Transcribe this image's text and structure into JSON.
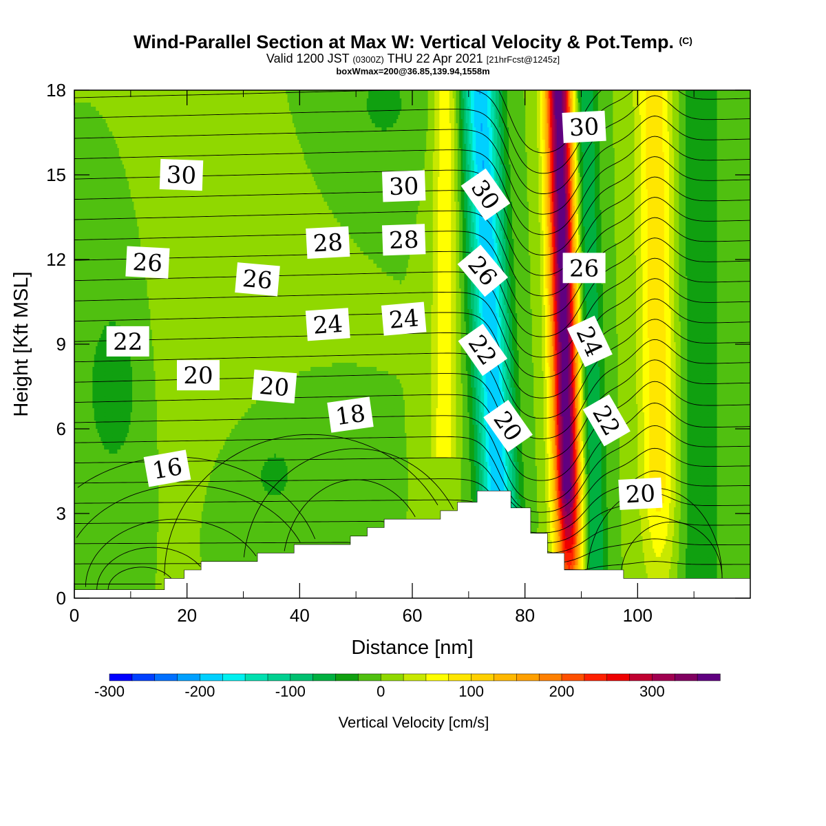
{
  "title": {
    "main": "Wind-Parallel Section at Max W: Vertical Velocity & Pot.Temp.",
    "copyright": "(C)",
    "valid_prefix": "Valid 1200 JST",
    "valid_utc": "(0300Z)",
    "valid_date": "THU 22 Apr 2021",
    "forecast": "[21hrFcst@1245z]",
    "box": "boxWmax=200@36.85,139.94,1558m"
  },
  "chart_data": {
    "type": "heatmap",
    "xlabel": "Distance [nm]",
    "ylabel": "Height [Kft MSL]",
    "xlim": [
      0,
      120
    ],
    "ylim": [
      0,
      18
    ],
    "x_ticks": [
      "0",
      "20",
      "40",
      "60",
      "80",
      "100"
    ],
    "y_ticks": [
      "0",
      "3",
      "6",
      "9",
      "12",
      "15",
      "18"
    ],
    "colorbar": {
      "label": "Vertical Velocity [cm/s]",
      "range": [
        -300,
        375
      ],
      "step": 25,
      "tick_labels": [
        "-300",
        "-200",
        "-100",
        "0",
        "100",
        "200",
        "300"
      ],
      "colors": [
        "#0000ff",
        "#0040ff",
        "#0070ff",
        "#00a0ff",
        "#00d0ff",
        "#00f0f0",
        "#00e0b0",
        "#00d090",
        "#00c070",
        "#00b040",
        "#10a010",
        "#50c010",
        "#90d800",
        "#c8e800",
        "#ffff00",
        "#ffe600",
        "#ffd000",
        "#ffb800",
        "#ffa000",
        "#ff8000",
        "#ff5000",
        "#ff2000",
        "#ee0000",
        "#c00030",
        "#a00050",
        "#800060",
        "#600080"
      ]
    },
    "potential_temperature_contour_labels": [
      "30",
      "30",
      "30",
      "30",
      "28",
      "28",
      "26",
      "26",
      "26",
      "26",
      "24",
      "24",
      "24",
      "22",
      "22",
      "22",
      "20",
      "20",
      "20",
      "20",
      "18",
      "16"
    ],
    "terrain_top_kft": [
      {
        "x": 0,
        "h": 0.3
      },
      {
        "x": 16,
        "h": 0.7
      },
      {
        "x": 19.5,
        "h": 1.0
      },
      {
        "x": 22.5,
        "h": 1.3
      },
      {
        "x": 32.5,
        "h": 1.6
      },
      {
        "x": 39,
        "h": 1.9
      },
      {
        "x": 49,
        "h": 2.2
      },
      {
        "x": 52,
        "h": 2.5
      },
      {
        "x": 55,
        "h": 2.8
      },
      {
        "x": 65,
        "h": 3.1
      },
      {
        "x": 68,
        "h": 3.4
      },
      {
        "x": 71.5,
        "h": 3.8
      },
      {
        "x": 77.5,
        "h": 3.2
      },
      {
        "x": 81,
        "h": 2.3
      },
      {
        "x": 84,
        "h": 1.6
      },
      {
        "x": 87,
        "h": 1.0
      },
      {
        "x": 97.5,
        "h": 0.7
      },
      {
        "x": 120,
        "h": 0.7
      }
    ],
    "vertical_velocity_features": [
      {
        "name": "downdraft",
        "x_at_surface": 76,
        "x_at_top": 72,
        "min_cm_s": -200
      },
      {
        "name": "updraft",
        "x_at_surface": 88,
        "x_at_top": 86,
        "max_cm_s": 375
      },
      {
        "name": "lee updraft",
        "x_at_surface": 104,
        "x_at_top": 103,
        "max_cm_s": 100
      },
      {
        "name": "upstream updraft",
        "x_at_surface": 65,
        "x_at_top": 66,
        "max_cm_s": 75
      }
    ]
  }
}
